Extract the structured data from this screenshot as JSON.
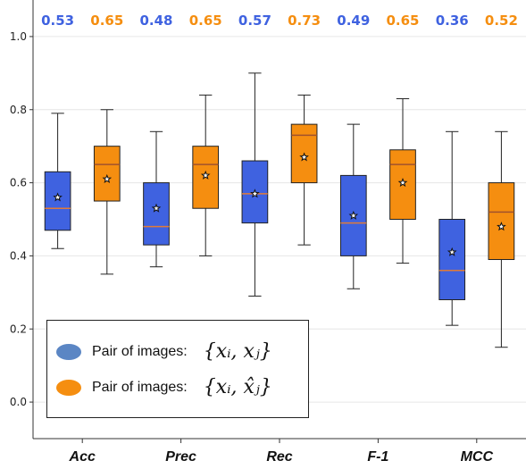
{
  "chart_data": {
    "type": "box",
    "categories": [
      "Acc",
      "Prec",
      "Rec",
      "F-1",
      "MCC"
    ],
    "ylim": [
      -0.1,
      1.1
    ],
    "yticks": [
      "0.0",
      "0.2",
      "0.4",
      "0.6",
      "0.8",
      "1.0"
    ],
    "grid": "horizontal",
    "legend_position": "lower-left",
    "series": [
      {
        "color": "#3f62e0",
        "means_label": [
          "0.53",
          "0.48",
          "0.57",
          "0.49",
          "0.36"
        ],
        "boxes": [
          {
            "whislo": 0.42,
            "q1": 0.47,
            "med": 0.53,
            "q3": 0.63,
            "whishi": 0.79,
            "mean": 0.56
          },
          {
            "whislo": 0.37,
            "q1": 0.43,
            "med": 0.48,
            "q3": 0.6,
            "whishi": 0.74,
            "mean": 0.53
          },
          {
            "whislo": 0.29,
            "q1": 0.49,
            "med": 0.57,
            "q3": 0.66,
            "whishi": 0.9,
            "mean": 0.57
          },
          {
            "whislo": 0.31,
            "q1": 0.4,
            "med": 0.49,
            "q3": 0.62,
            "whishi": 0.76,
            "mean": 0.51
          },
          {
            "whislo": 0.21,
            "q1": 0.28,
            "med": 0.36,
            "q3": 0.5,
            "whishi": 0.74,
            "mean": 0.41
          }
        ]
      },
      {
        "color": "#f58e10",
        "means_label": [
          "0.65",
          "0.65",
          "0.73",
          "0.65",
          "0.52"
        ],
        "boxes": [
          {
            "whislo": 0.35,
            "q1": 0.55,
            "med": 0.65,
            "q3": 0.7,
            "whishi": 0.8,
            "mean": 0.61
          },
          {
            "whislo": 0.4,
            "q1": 0.53,
            "med": 0.65,
            "q3": 0.7,
            "whishi": 0.84,
            "mean": 0.62
          },
          {
            "whislo": 0.43,
            "q1": 0.6,
            "med": 0.73,
            "q3": 0.76,
            "whishi": 0.84,
            "mean": 0.67
          },
          {
            "whislo": 0.38,
            "q1": 0.5,
            "med": 0.65,
            "q3": 0.69,
            "whishi": 0.83,
            "mean": 0.6
          },
          {
            "whislo": 0.15,
            "q1": 0.39,
            "med": 0.52,
            "q3": 0.6,
            "whishi": 0.74,
            "mean": 0.48
          }
        ]
      }
    ]
  },
  "legend": {
    "items": [
      {
        "label": "Pair of images:",
        "math": "{xᵢ, xⱼ}",
        "color": "#5b86c4"
      },
      {
        "label": "Pair of images:",
        "math": "{xᵢ, x̂ⱼ}",
        "color": "#f58e10"
      }
    ]
  }
}
